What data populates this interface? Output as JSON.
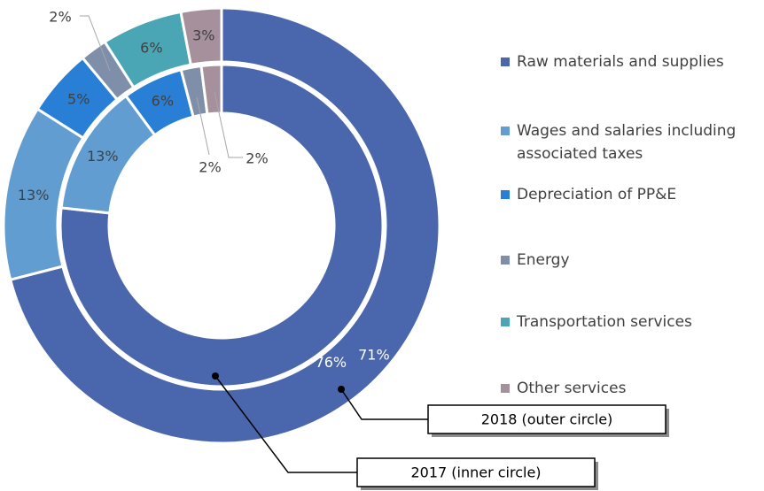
{
  "chart_data": {
    "type": "donut",
    "categories": [
      "Raw materials and supplies",
      "Wages and salaries including associated taxes",
      "Depreciation of PP&E",
      "Energy",
      "Transportation services",
      "Other services"
    ],
    "colors": [
      "#4a66ac",
      "#629dd1",
      "#297fd5",
      "#7f8fa9",
      "#4aa6b4",
      "#a5909c"
    ],
    "series": [
      {
        "name": "2018 (outer circle)",
        "values": [
          71,
          13,
          5,
          2,
          6,
          3
        ],
        "value_labels": [
          "71%",
          "13%",
          "5%",
          "2%",
          "6%",
          "3%"
        ]
      },
      {
        "name": "2017 (inner circle)",
        "values": [
          76,
          13,
          6,
          2,
          0,
          2
        ],
        "value_labels": [
          "76%",
          "13%",
          "6%",
          "2%",
          null,
          "2%"
        ]
      }
    ],
    "legend": "right"
  }
}
